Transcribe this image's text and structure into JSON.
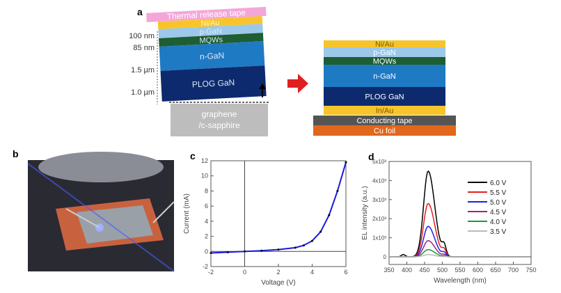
{
  "panel_a": {
    "label": "a",
    "left_layers": [
      {
        "name": "Thermal release tape",
        "color": "#f4a6d8"
      },
      {
        "name": "Ni/Au",
        "color": "#f7c52b"
      },
      {
        "name": "p-GaN",
        "color": "#9cc8ea"
      },
      {
        "name": "MQWs",
        "color": "#1d5e33"
      },
      {
        "name": "n-GaN",
        "color": "#1f7ac4"
      },
      {
        "name": "PLOG GaN",
        "color": "#0d2a6e"
      }
    ],
    "thicknesses": [
      "100 nm",
      "85 nm",
      "1.5 µm",
      "1.0 µm"
    ],
    "substrate": [
      "graphene",
      "/c-sapphire"
    ],
    "right_layers": [
      {
        "name": "Ni/Au",
        "color": "#f7c52b"
      },
      {
        "name": "p-GaN",
        "color": "#9cc8ea"
      },
      {
        "name": "MQWs",
        "color": "#1d5e33"
      },
      {
        "name": "n-GaN",
        "color": "#1f7ac4"
      },
      {
        "name": "PLOG GaN",
        "color": "#0d2a6e"
      },
      {
        "name": "In/Au",
        "color": "#f7c52b"
      },
      {
        "name": "Conducting tape",
        "color": "#555555"
      },
      {
        "name": "Cu foil",
        "color": "#e2661c"
      }
    ]
  },
  "panel_b": {
    "label": "b"
  },
  "chart_data": [
    {
      "panel": "c",
      "type": "line",
      "xlabel": "Voltage (V)",
      "ylabel": "Current (mA)",
      "xlim": [
        -2,
        6
      ],
      "ylim": [
        -2,
        12
      ],
      "xticks": [
        -2,
        0,
        2,
        4,
        6
      ],
      "yticks": [
        -2,
        0,
        2,
        4,
        6,
        8,
        10,
        12
      ],
      "series": [
        {
          "color": "#1a1adb",
          "x": [
            -2,
            -1,
            0,
            1,
            2,
            3,
            3.5,
            4,
            4.5,
            5,
            5.5,
            6
          ],
          "y": [
            -0.2,
            -0.1,
            0,
            0.1,
            0.25,
            0.5,
            0.8,
            1.4,
            2.6,
            4.8,
            8,
            11.8
          ]
        }
      ]
    },
    {
      "panel": "d",
      "type": "line",
      "xlabel": "Wavelength (nm)",
      "ylabel": "EL intensity (a.u.)",
      "xlim": [
        350,
        750
      ],
      "ylim": [
        -0.4,
        5
      ],
      "xticks": [
        350,
        400,
        450,
        500,
        550,
        600,
        650,
        700,
        750
      ],
      "yticks": [
        "0",
        "1x10³",
        "2x10³",
        "3x10³",
        "4x10³",
        "5x10³"
      ],
      "legend": "top-right",
      "series": [
        {
          "name": "6.0 V",
          "color": "#000000",
          "peak": 4.5
        },
        {
          "name": "5.5 V",
          "color": "#e02020",
          "peak": 2.8
        },
        {
          "name": "5.0 V",
          "color": "#2020e0",
          "peak": 1.6
        },
        {
          "name": "4.5 V",
          "color": "#a0208a",
          "peak": 0.85
        },
        {
          "name": "4.0 V",
          "color": "#1a9a3a",
          "peak": 0.38
        },
        {
          "name": "3.5 V",
          "color": "#bbbbbb",
          "peak": 0.12
        }
      ]
    }
  ]
}
